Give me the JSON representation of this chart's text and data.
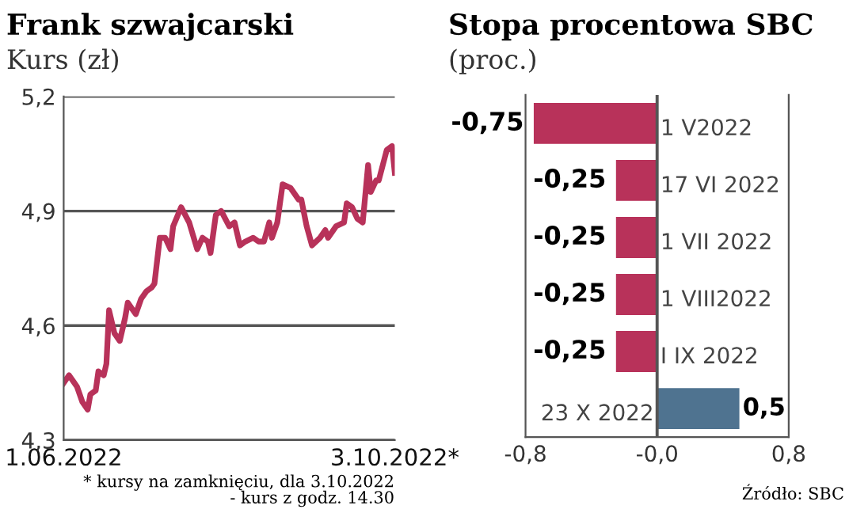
{
  "chart_data": [
    {
      "type": "line",
      "title": "Frank szwajcarski",
      "subtitle": "Kurs (zł)",
      "x": [
        "2022-06-01",
        "2022-06-03",
        "2022-06-05",
        "2022-06-06",
        "2022-06-08",
        "2022-06-10",
        "2022-06-11",
        "2022-06-13",
        "2022-06-14",
        "2022-06-16",
        "2022-06-17",
        "2022-06-18",
        "2022-06-20",
        "2022-06-22",
        "2022-06-24",
        "2022-06-25",
        "2022-06-28",
        "2022-06-30",
        "2022-07-02",
        "2022-07-04",
        "2022-07-05",
        "2022-07-07",
        "2022-07-09",
        "2022-07-11",
        "2022-07-12",
        "2022-07-15",
        "2022-07-18",
        "2022-07-21",
        "2022-07-23",
        "2022-07-25",
        "2022-07-26",
        "2022-07-28",
        "2022-07-30",
        "2022-08-02",
        "2022-08-04",
        "2022-08-06",
        "2022-08-08",
        "2022-08-11",
        "2022-08-13",
        "2022-08-15",
        "2022-08-17",
        "2022-08-18",
        "2022-08-20",
        "2022-08-22",
        "2022-08-25",
        "2022-08-28",
        "2022-08-29",
        "2022-08-31",
        "2022-09-02",
        "2022-09-05",
        "2022-09-07",
        "2022-09-08",
        "2022-09-11",
        "2022-09-14",
        "2022-09-15",
        "2022-09-17",
        "2022-09-19",
        "2022-09-21",
        "2022-09-23",
        "2022-09-24",
        "2022-09-26",
        "2022-09-27",
        "2022-09-30",
        "2022-10-02",
        "2022-10-03"
      ],
      "series": [
        {
          "color": "#b8325a",
          "values": [
            4.45,
            4.47,
            4.45,
            4.44,
            4.4,
            4.38,
            4.42,
            4.43,
            4.48,
            4.47,
            4.5,
            4.64,
            4.58,
            4.56,
            4.62,
            4.66,
            4.63,
            4.67,
            4.69,
            4.7,
            4.71,
            4.83,
            4.83,
            4.8,
            4.86,
            4.91,
            4.87,
            4.8,
            4.83,
            4.82,
            4.79,
            4.89,
            4.9,
            4.86,
            4.87,
            4.81,
            4.82,
            4.83,
            4.82,
            4.82,
            4.87,
            4.83,
            4.87,
            4.97,
            4.96,
            4.93,
            4.93,
            4.86,
            4.81,
            4.83,
            4.85,
            4.83,
            4.86,
            4.87,
            4.92,
            4.91,
            4.88,
            4.87,
            5.02,
            4.95,
            4.98,
            4.98,
            5.06,
            5.07,
            5.0
          ]
        }
      ],
      "xlim": [
        "2022-06-01",
        "2022-10-03"
      ],
      "xticks": [
        {
          "value": "2022-06-01",
          "label": "1.06.2022"
        },
        {
          "value": "2022-10-03",
          "label": "3.10.2022*"
        }
      ],
      "ylim": [
        4.3,
        5.2
      ],
      "yticks": [
        {
          "value": 4.3,
          "label": "4,3"
        },
        {
          "value": 4.6,
          "label": "4,6"
        },
        {
          "value": 4.9,
          "label": "4,9"
        },
        {
          "value": 5.2,
          "label": "5,2"
        }
      ],
      "grid": "y",
      "legend": false,
      "marker": "none",
      "line_style": "solid",
      "annotations": [
        "* kursy na zamknięciu, dla 3.10.2022\n- kurs z godz. 14.30"
      ]
    },
    {
      "type": "bar",
      "orientation": "horizontal",
      "title": "Stopa procentowa SBC",
      "subtitle": "(proc.)",
      "categories": [
        "1 V2022",
        "17 VI 2022",
        "1 VII 2022",
        "1 VIII2022",
        "I IX 2022",
        "23 X 2022"
      ],
      "values": [
        -0.75,
        -0.25,
        -0.25,
        -0.25,
        -0.25,
        0.5
      ],
      "colors": [
        "#b8325a",
        "#b8325a",
        "#b8325a",
        "#b8325a",
        "#b8325a",
        "#4f7390"
      ],
      "value_labels": [
        "-0,75",
        "-0,25",
        "-0,25",
        "-0,25",
        "-0,25",
        "0,5"
      ],
      "xlim": [
        -0.8,
        0.8
      ],
      "xticks": [
        {
          "value": -0.8,
          "label": "-0,8"
        },
        {
          "value": 0.0,
          "label": "-0,0"
        },
        {
          "value": 0.8,
          "label": "0,8"
        }
      ],
      "legend": false,
      "annotations": [
        "Źródło: SBC"
      ]
    }
  ]
}
